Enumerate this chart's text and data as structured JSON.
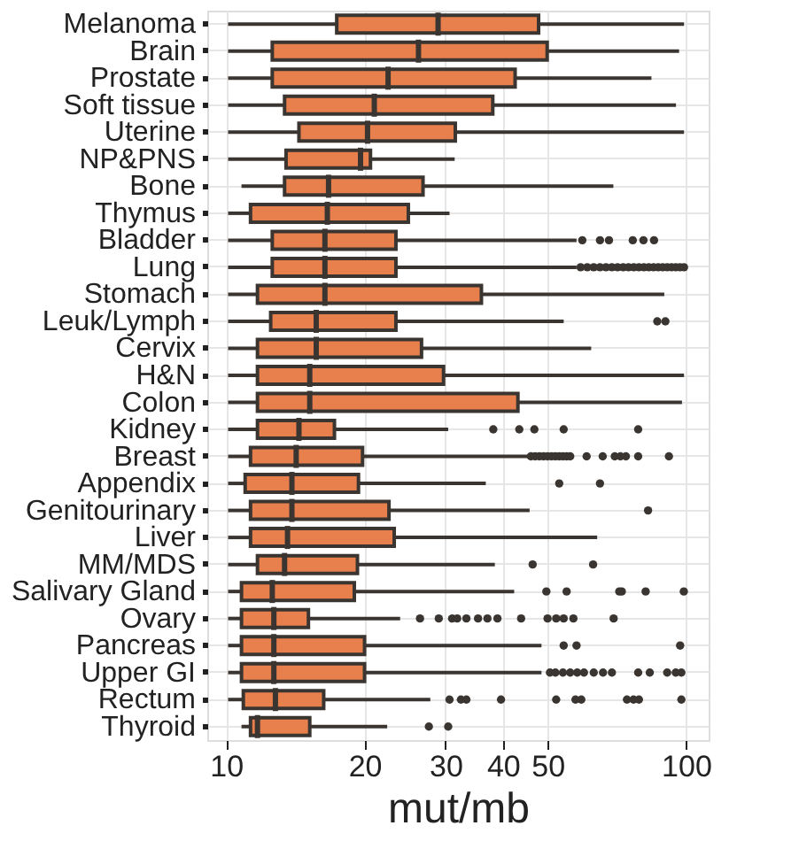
{
  "chart_data": {
    "type": "box",
    "orientation": "horizontal",
    "xlabel": "mut/mb",
    "log": "x",
    "grid": true,
    "xlim": [
      9.1,
      112
    ],
    "xticks": [
      10,
      20,
      30,
      40,
      50,
      100
    ],
    "categories": [
      "Melanoma",
      "Brain",
      "Prostate",
      "Soft tissue",
      "Uterine",
      "NP&PNS",
      "Bone",
      "Thymus",
      "Bladder",
      "Lung",
      "Stomach",
      "Leuk/Lymph",
      "Cervix",
      "H&N",
      "Colon",
      "Kidney",
      "Breast",
      "Appendix",
      "Genitourinary",
      "Liver",
      "MM/MDS",
      "Salivary Gland",
      "Ovary",
      "Pancreas",
      "Upper GI",
      "Rectum",
      "Thyroid"
    ],
    "series": [
      {
        "color": "#e8804e",
        "boxes": [
          {
            "low": 10.1,
            "q1": 17.4,
            "median": 28.9,
            "q3": 47.8,
            "high": 99
          },
          {
            "low": 10.1,
            "q1": 12.6,
            "median": 26.2,
            "q3": 49.9,
            "high": 96.6
          },
          {
            "low": 10.1,
            "q1": 12.6,
            "median": 22.5,
            "q3": 42.5,
            "high": 84.1
          },
          {
            "low": 10.1,
            "q1": 13.4,
            "median": 21.0,
            "q3": 38.0,
            "high": 95.1
          },
          {
            "low": 10.1,
            "q1": 14.4,
            "median": 20.3,
            "q3": 31.5,
            "high": 99
          },
          {
            "low": 10.1,
            "q1": 13.5,
            "median": 19.6,
            "q3": 20.6,
            "high": 31.4
          },
          {
            "low": 10.8,
            "q1": 13.4,
            "median": 16.7,
            "q3": 26.8,
            "high": 69.5
          },
          {
            "low": 10.1,
            "q1": 11.3,
            "median": 16.6,
            "q3": 24.9,
            "high": 30.6
          },
          {
            "low": 10.1,
            "q1": 12.6,
            "median": 16.4,
            "q3": 23.4,
            "high": 57.8,
            "outliers": [
              59.5,
              65,
              68,
              76.6,
              80.8,
              85.2
            ]
          },
          {
            "low": 10.1,
            "q1": 12.6,
            "median": 16.4,
            "q3": 23.4,
            "high": 57.8,
            "outliers": [
              59,
              61,
              63,
              65,
              67,
              69,
              71,
              73,
              75,
              77,
              79,
              81,
              83,
              85,
              87,
              89,
              91,
              93,
              95,
              97,
              99
            ]
          },
          {
            "low": 10.1,
            "q1": 11.7,
            "median": 16.4,
            "q3": 35.9,
            "high": 89.7
          },
          {
            "low": 10.1,
            "q1": 12.5,
            "median": 15.7,
            "q3": 23.4,
            "high": 54.2,
            "outliers": [
              86.6,
              90.2
            ]
          },
          {
            "low": 10.1,
            "q1": 11.7,
            "median": 15.7,
            "q3": 26.6,
            "high": 62.2
          },
          {
            "low": 10.1,
            "q1": 11.7,
            "median": 15.2,
            "q3": 29.7,
            "high": 99
          },
          {
            "low": 10.1,
            "q1": 11.7,
            "median": 15.2,
            "q3": 43.1,
            "high": 98
          },
          {
            "low": 10.1,
            "q1": 11.7,
            "median": 14.4,
            "q3": 17.2,
            "high": 30.4,
            "outliers": [
              38.1,
              43.4,
              46.8,
              54.2,
              78.7
            ]
          },
          {
            "low": 10.1,
            "q1": 11.3,
            "median": 14.2,
            "q3": 19.8,
            "high": 45.5,
            "outliers": [
              46,
              47,
              48,
              49,
              50,
              51,
              52,
              53,
              54,
              55,
              56,
              60.8,
              65.9,
              70,
              72,
              74,
              78.7,
              91.8
            ]
          },
          {
            "low": 10.1,
            "q1": 11.0,
            "median": 13.9,
            "q3": 19.4,
            "high": 36.7,
            "outliers": [
              53.0,
              65
            ]
          },
          {
            "low": 10.1,
            "q1": 11.3,
            "median": 13.9,
            "q3": 22.6,
            "high": 45.7,
            "outliers": [
              82.7
            ]
          },
          {
            "low": 10.1,
            "q1": 11.3,
            "median": 13.6,
            "q3": 23.2,
            "high": 64.1
          },
          {
            "low": 10.1,
            "q1": 11.7,
            "median": 13.4,
            "q3": 19.3,
            "high": 38.4,
            "outliers": [
              46.4,
              62.8
            ]
          },
          {
            "low": 10.1,
            "q1": 10.8,
            "median": 12.6,
            "q3": 19.0,
            "high": 42.3,
            "outliers": [
              49.7,
              55.0,
              71.6,
              72.5,
              81.7,
              98.9
            ]
          },
          {
            "low": 10.1,
            "q1": 10.8,
            "median": 12.7,
            "q3": 15.1,
            "high": 23.9,
            "outliers": [
              26.4,
              29.0,
              31.0,
              31.8,
              33.3,
              35.3,
              37.0,
              38.9,
              43.8,
              50.0,
              52.2,
              54.2,
              56.9,
              69.6
            ]
          },
          {
            "low": 10.1,
            "q1": 10.8,
            "median": 12.7,
            "q3": 20.0,
            "high": 48.5,
            "outliers": [
              54.2,
              57.8,
              97.1
            ]
          },
          {
            "low": 10.1,
            "q1": 10.8,
            "median": 12.7,
            "q3": 20.0,
            "high": 48.5,
            "outliers": [
              50.6,
              52,
              54,
              56,
              58,
              60,
              63,
              66,
              69,
              78.7,
              83.4,
              91,
              95,
              97.7
            ]
          },
          {
            "low": 10.1,
            "q1": 10.9,
            "median": 12.8,
            "q3": 16.3,
            "high": 27.8,
            "outliers": [
              30.6,
              32.4,
              33.3,
              39.6,
              52.2,
              57.5,
              59.2,
              74.4,
              76.9,
              79,
              97.7
            ]
          },
          {
            "low": 10.8,
            "q1": 11.3,
            "median": 11.7,
            "q3": 15.2,
            "high": 22.4,
            "outliers": [
              27.6,
              30.4
            ]
          }
        ]
      }
    ]
  }
}
